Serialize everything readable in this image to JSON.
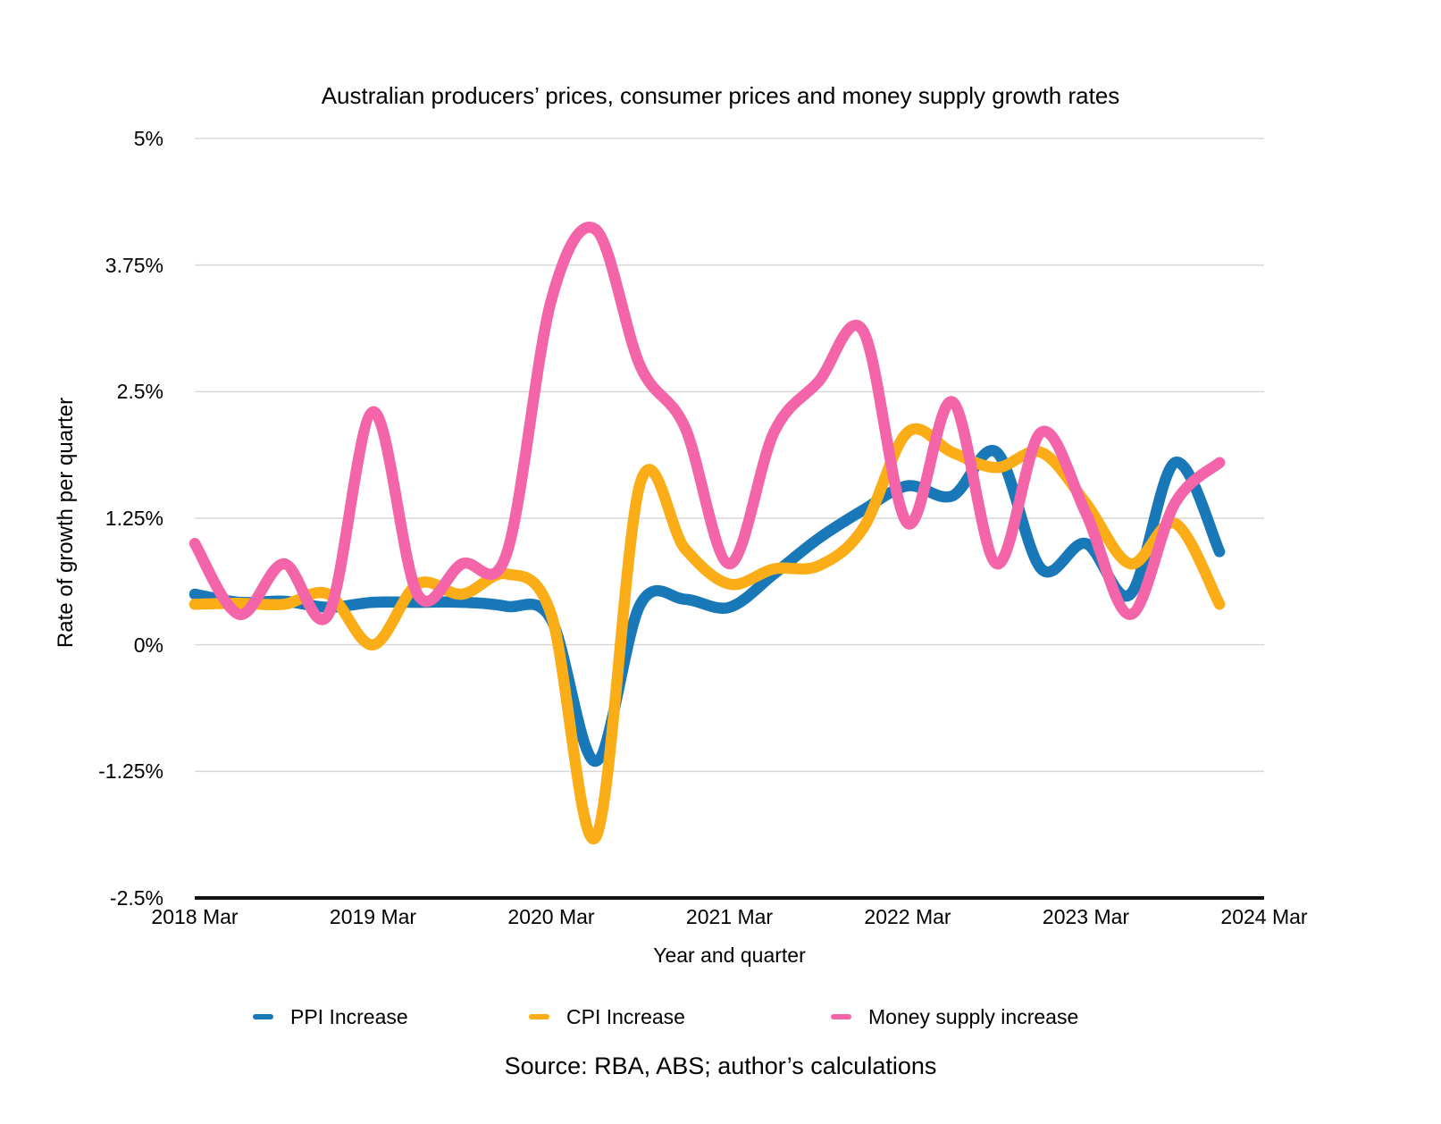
{
  "title": "Australian producers’ prices, consumer prices and money supply growth rates",
  "source": "Source: RBA, ABS; author’s calculations",
  "y_axis": {
    "label": "Rate of growth per quarter",
    "ticks": [
      "5%",
      "3.75%",
      "2.5%",
      "1.25%",
      "0%",
      "-1.25%",
      "-2.5%"
    ],
    "tick_values": [
      5,
      3.75,
      2.5,
      1.25,
      0,
      -1.25,
      -2.5
    ]
  },
  "x_axis": {
    "label": "Year and quarter",
    "ticks": [
      "2018 Mar",
      "2019 Mar",
      "2020 Mar",
      "2021 Mar",
      "2022 Mar",
      "2023 Mar",
      "2024 Mar"
    ]
  },
  "legend": {
    "items": [
      {
        "label": "PPI Increase",
        "color": "#1878B8"
      },
      {
        "label": "CPI Increase",
        "color": "#FBAD18"
      },
      {
        "label": "Money supply increase",
        "color": "#F364A8"
      }
    ]
  },
  "chart_data": {
    "type": "line",
    "smoothing": "curved",
    "grid": true,
    "legend_position": "bottom",
    "ylim": [
      -2.5,
      5
    ],
    "x_axis_start": "2018 Mar",
    "x_axis_end": "2024 Mar",
    "x": [
      "2018 Mar",
      "2018 Jun",
      "2018 Sep",
      "2018 Dec",
      "2019 Mar",
      "2019 Jun",
      "2019 Sep",
      "2019 Dec",
      "2020 Mar",
      "2020 Jun",
      "2020 Sep",
      "2020 Dec",
      "2021 Mar",
      "2021 Jun",
      "2021 Sep",
      "2021 Dec",
      "2022 Mar",
      "2022 Jun",
      "2022 Sep",
      "2022 Dec",
      "2023 Mar",
      "2023 Jun",
      "2023 Sep",
      "2023 Dec"
    ],
    "series": [
      {
        "name": "PPI Increase",
        "color": "#1878B8",
        "values": [
          0.5,
          0.42,
          0.43,
          0.37,
          0.42,
          0.42,
          0.42,
          0.38,
          0.25,
          -1.15,
          0.4,
          0.45,
          0.37,
          0.7,
          1.05,
          1.33,
          1.57,
          1.47,
          1.9,
          0.75,
          1.0,
          0.5,
          1.8,
          0.92
        ]
      },
      {
        "name": "CPI Increase",
        "color": "#FBAD18",
        "values": [
          0.4,
          0.41,
          0.4,
          0.5,
          0.0,
          0.6,
          0.5,
          0.7,
          0.3,
          -1.9,
          1.6,
          0.95,
          0.6,
          0.75,
          0.78,
          1.15,
          2.1,
          1.9,
          1.75,
          1.9,
          1.4,
          0.8,
          1.2,
          0.4
        ]
      },
      {
        "name": "Money supply increase",
        "color": "#F364A8",
        "values": [
          1.0,
          0.3,
          0.8,
          0.3,
          2.3,
          0.5,
          0.8,
          0.9,
          3.4,
          4.1,
          2.75,
          2.15,
          0.8,
          2.1,
          2.6,
          3.1,
          1.2,
          2.4,
          0.8,
          2.1,
          1.3,
          0.3,
          1.4,
          1.8
        ]
      }
    ]
  },
  "style": {
    "background": "#ffffff",
    "gridline_color": "#d8d8d8",
    "axis_line_color": "#111111",
    "text_color": "#000000"
  }
}
